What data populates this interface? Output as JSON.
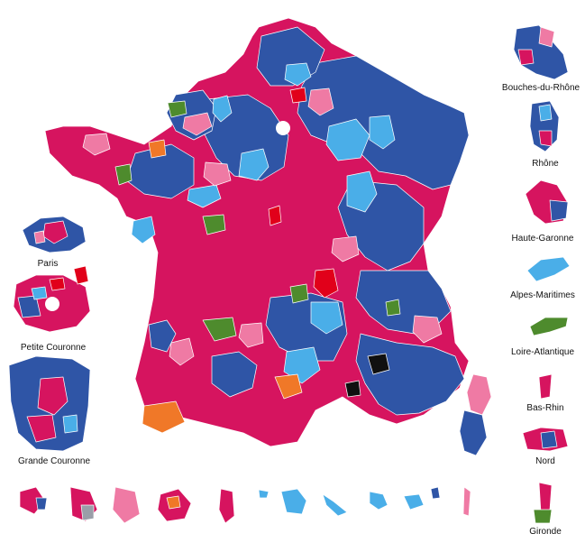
{
  "colors": {
    "pink": "#d6145f",
    "lightpink": "#ef7aa4",
    "blue": "#2f55a6",
    "lightblue": "#4aaee8",
    "red": "#e1001a",
    "green": "#4e8b2d",
    "orange": "#f07828",
    "black": "#101010",
    "grey": "#9a9ea8"
  },
  "insets": {
    "paris": "Paris",
    "petite_couronne": "Petite Couronne",
    "grande_couronne": "Grande Couronne",
    "bouches_du_rhone": "Bouches-du-Rhône",
    "rhone": "Rhône",
    "haute_garonne": "Haute-Garonne",
    "alpes_maritimes": "Alpes-Maritimes",
    "loire_atlantique": "Loire-Atlantique",
    "bas_rhin": "Bas-Rhin",
    "nord": "Nord",
    "gironde": "Gironde"
  }
}
